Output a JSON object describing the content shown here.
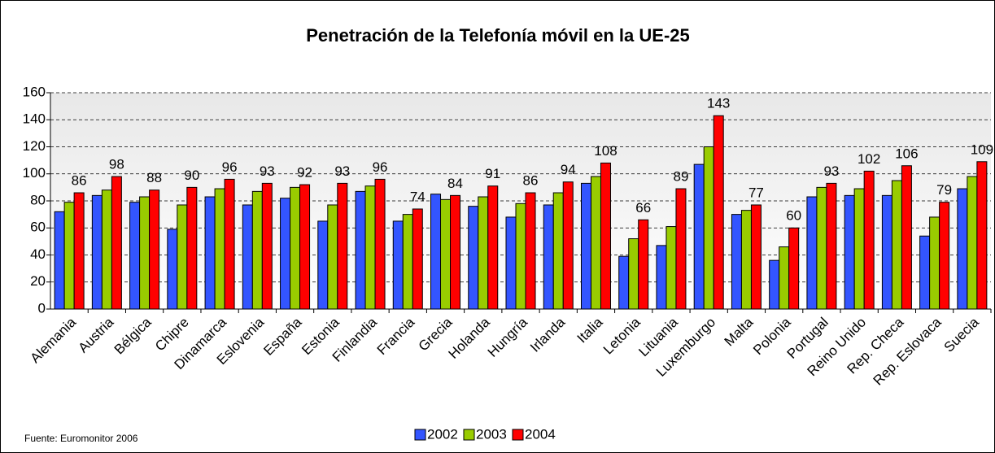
{
  "chart_data": {
    "type": "bar",
    "title": "Penetración de la Telefonía móvil en la UE-25",
    "source": "Fuente: Euromonitor 2006",
    "categories": [
      "Alemania",
      "Austria",
      "Bélgica",
      "Chipre",
      "Dinamarca",
      "Eslovenia",
      "España",
      "Estonia",
      "Finlandia",
      "Francia",
      "Grecia",
      "Holanda",
      "Hungría",
      "Irlanda",
      "Italia",
      "Letonia",
      "Lituania",
      "Luxemburgo",
      "Malta",
      "Polonia",
      "Portugal",
      "Reino Unido",
      "Rep. Checa",
      "Rep. Eslovaca",
      "Suecia"
    ],
    "series": [
      {
        "name": "2002",
        "color": "#3355ff",
        "values": [
          72,
          84,
          79,
          59,
          83,
          77,
          82,
          65,
          87,
          65,
          85,
          76,
          68,
          77,
          93,
          39,
          47,
          107,
          70,
          36,
          83,
          84,
          84,
          54,
          89
        ]
      },
      {
        "name": "2003",
        "color": "#99cc00",
        "values": [
          79,
          88,
          83,
          77,
          89,
          87,
          90,
          77,
          91,
          70,
          81,
          83,
          78,
          86,
          98,
          52,
          61,
          120,
          73,
          46,
          90,
          89,
          95,
          68,
          98
        ]
      },
      {
        "name": "2004",
        "color": "#ff0000",
        "values": [
          86,
          98,
          88,
          90,
          96,
          93,
          92,
          93,
          96,
          74,
          84,
          91,
          86,
          94,
          108,
          66,
          89,
          143,
          77,
          60,
          93,
          102,
          106,
          79,
          109
        ]
      }
    ],
    "labeled_series": 2,
    "ylim": [
      0,
      160
    ],
    "yticks": [
      0,
      20,
      40,
      60,
      80,
      100,
      120,
      140,
      160
    ],
    "grid": true,
    "legend": "bottom"
  }
}
